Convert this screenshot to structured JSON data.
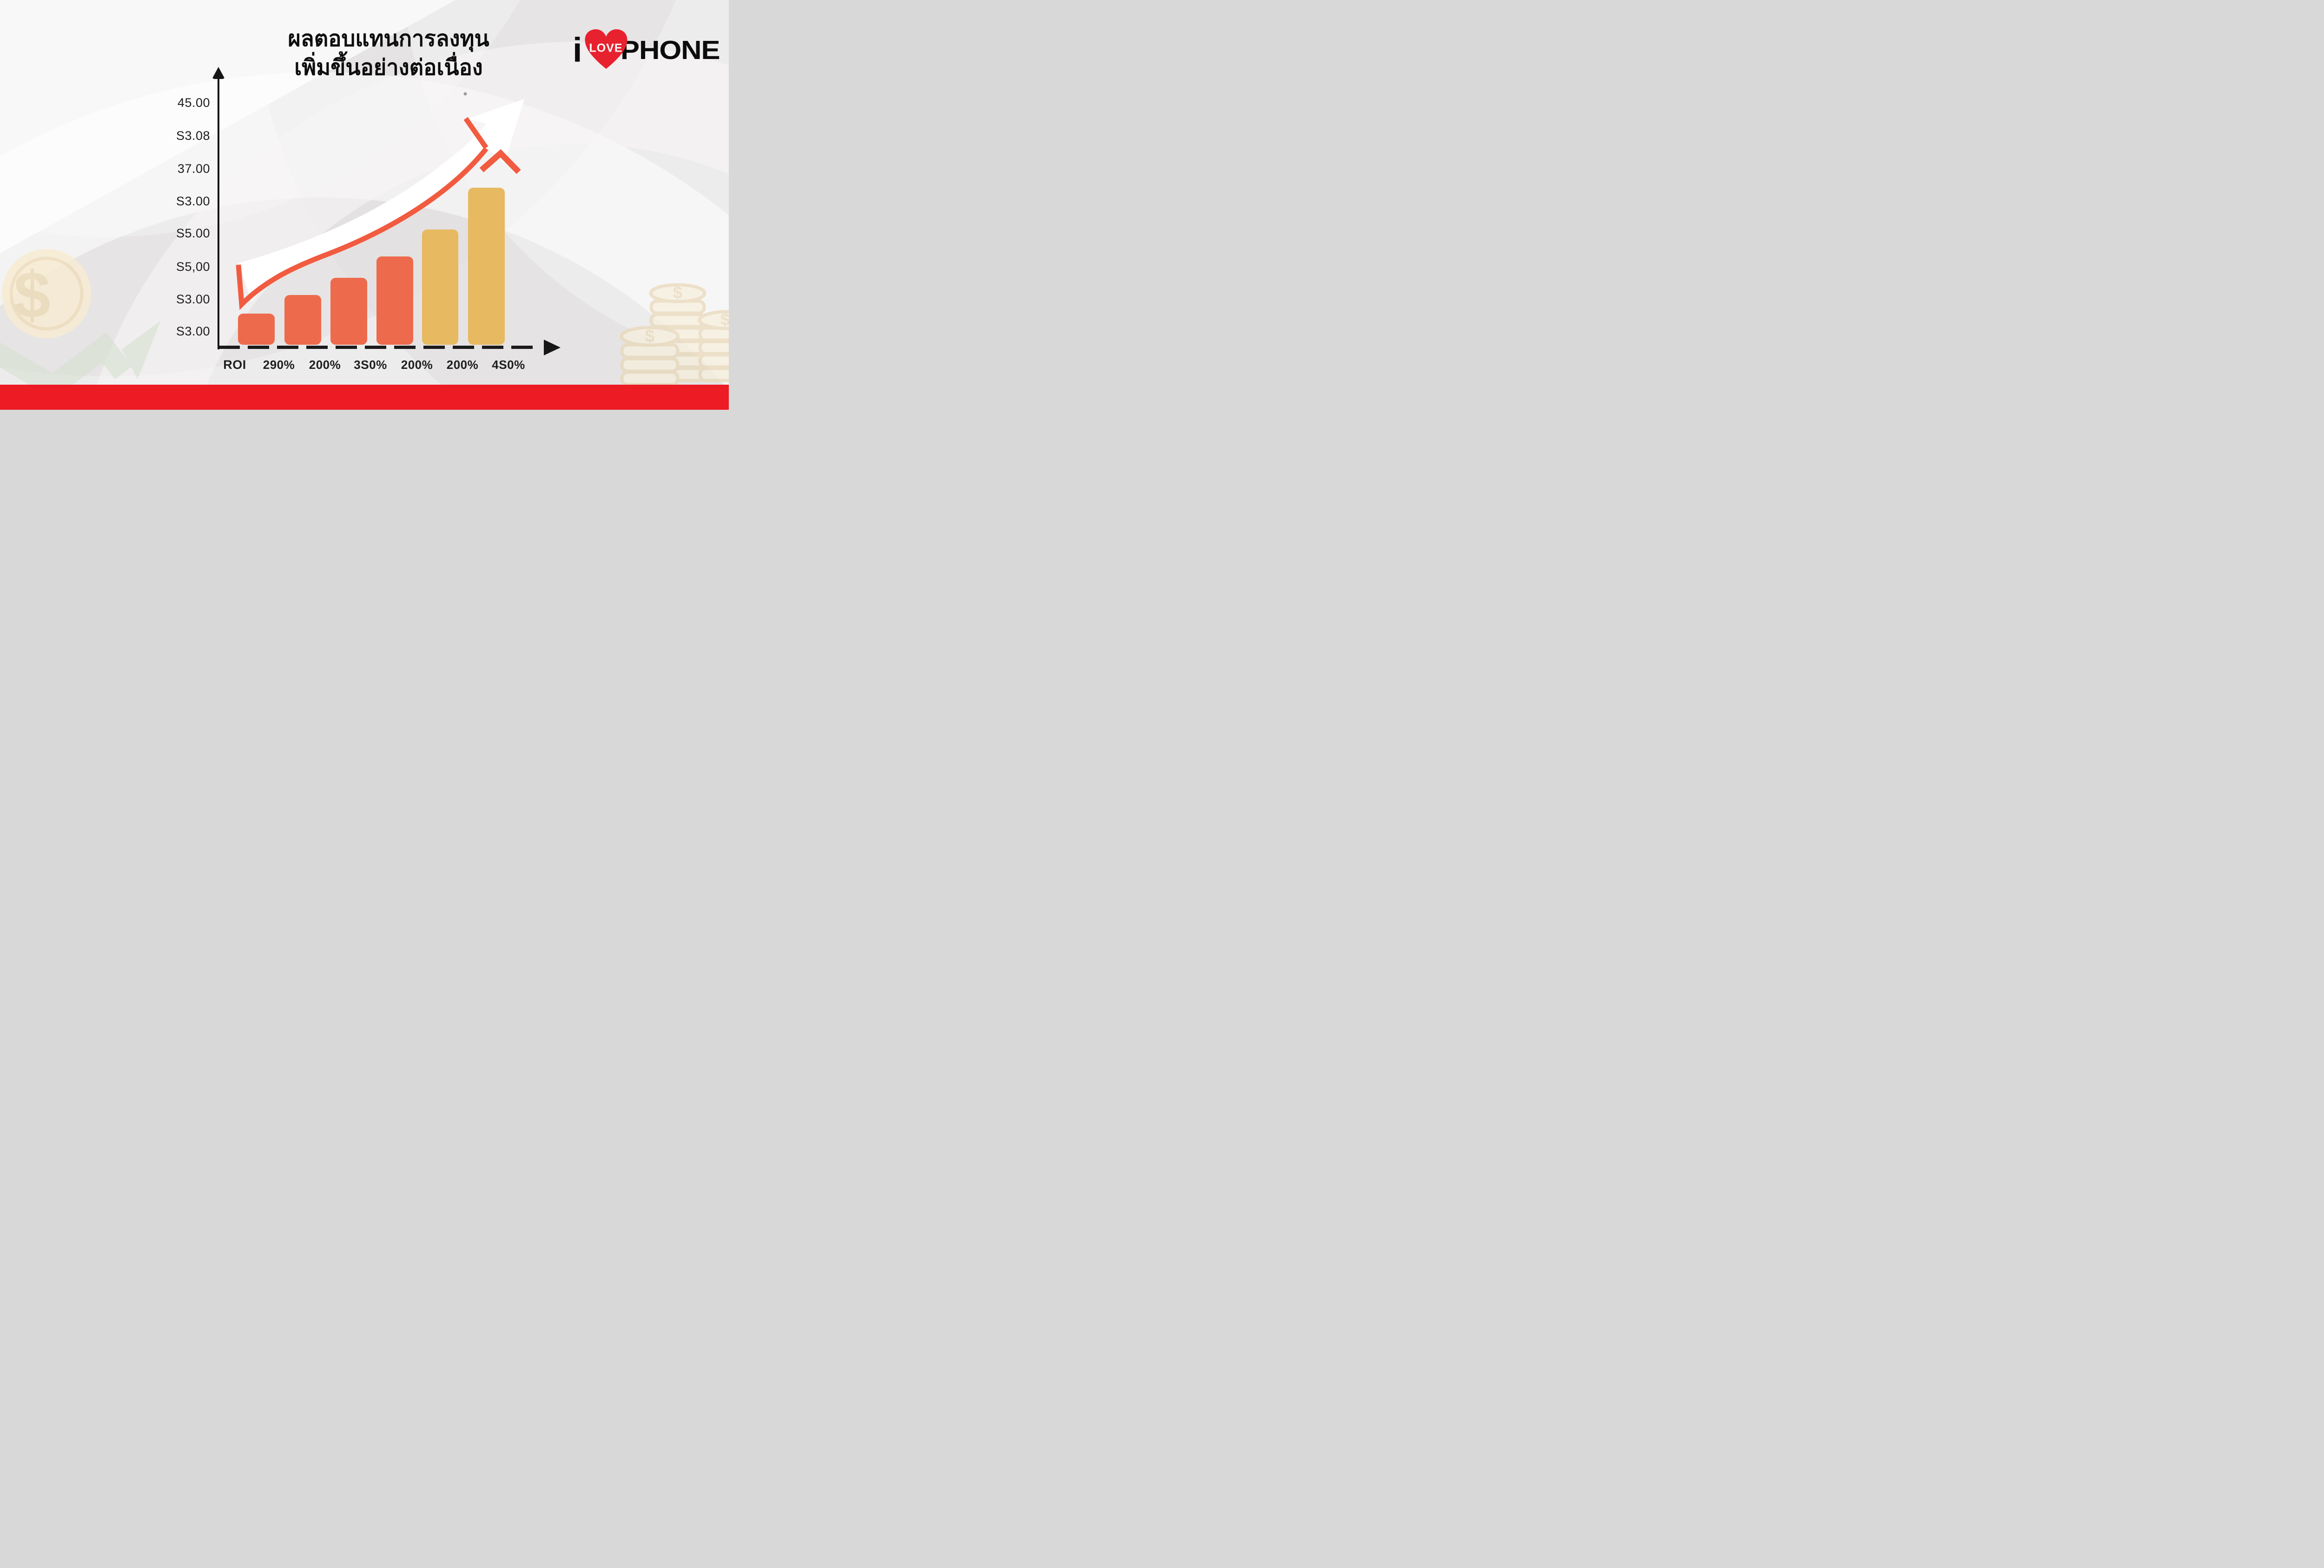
{
  "page": {
    "background_color": "#edecec",
    "footer_color": "#ec1b24"
  },
  "title": {
    "line1": "ผลตอบแทนการลงทุน",
    "line2": "เพิ่มขึ้นอย่างต่อเนื่อง"
  },
  "logo": {
    "i": "i",
    "love": "LOVE",
    "phone": "PHONE",
    "heart_color": "#e7222e",
    "text_color": "#0c0c0c"
  },
  "chart": {
    "y_tick_labels": [
      "45.00",
      "S3.08",
      "37.00",
      "S3.00",
      "S5.00",
      "S5,00",
      "S3.00",
      "S3.00"
    ],
    "x_first_label": "ROI",
    "x_labels": [
      "290%",
      "200%",
      "3S0%",
      "200%",
      "200%",
      "4S0%"
    ],
    "axis_color": "#161616",
    "bar_color_primary": "#ee6a4c",
    "bar_color_secondary": "#e7b960",
    "trend_arrow_fill": "#ffffff",
    "trend_accent_color": "#f15b40"
  },
  "chart_data": {
    "type": "bar",
    "x_axis_title": "ROI",
    "categories": [
      "290%",
      "200%",
      "3S0%",
      "200%",
      "200%",
      "4S0%"
    ],
    "values": [
      67,
      107,
      144,
      190,
      248,
      338
    ],
    "values_note": "relative bar heights (rendered px); source shows no numeric value scale",
    "colors": [
      "#ee6a4c",
      "#ee6a4c",
      "#ee6a4c",
      "#ee6a4c",
      "#e7b960",
      "#e7b960"
    ],
    "y_tick_labels": [
      "45.00",
      "S3.08",
      "37.00",
      "S3.00",
      "S5.00",
      "S5,00",
      "S3.00",
      "S3.00"
    ],
    "grid": false,
    "legend": null,
    "annotations": [
      "large white upward-curving trend arrow with orange-red accent trim over the bars"
    ]
  },
  "decorations": {
    "coin_symbol": "$",
    "accent_red": "#f15b40",
    "green_arrow_color": "#d6e1d0",
    "coin_fill": "#f8efdb",
    "coin_stroke": "#e9d8b6",
    "footer_red": "#ec1b24"
  }
}
